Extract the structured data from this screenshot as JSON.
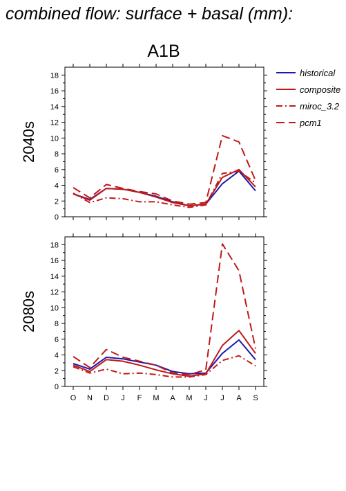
{
  "title": "combined flow: surface + basal (mm):",
  "scenario": "A1B",
  "legend": [
    {
      "label": "historical",
      "color": "#1a1ab0",
      "dash": "solid"
    },
    {
      "label": "composite",
      "color": "#c01818",
      "dash": "solid"
    },
    {
      "label": "miroc_3.2",
      "color": "#c01818",
      "dash": "dashdot"
    },
    {
      "label": "pcm1",
      "color": "#c01818",
      "dash": "dashed"
    }
  ],
  "chart_data": [
    {
      "type": "line",
      "period": "2040s",
      "categories": [
        "O",
        "N",
        "D",
        "J",
        "F",
        "M",
        "A",
        "M",
        "J",
        "J",
        "A",
        "S"
      ],
      "ylim": [
        0,
        19
      ],
      "yticks": [
        0,
        2,
        4,
        6,
        8,
        10,
        12,
        14,
        16,
        18
      ],
      "show_x_tick_labels": false,
      "series": [
        {
          "name": "historical",
          "values": [
            2.9,
            2.2,
            3.6,
            3.5,
            3.1,
            2.6,
            1.9,
            1.4,
            1.6,
            4.2,
            5.8,
            3.3
          ]
        },
        {
          "name": "composite",
          "values": [
            2.9,
            2.1,
            3.6,
            3.5,
            3.1,
            2.5,
            1.8,
            1.4,
            1.6,
            5.0,
            6.0,
            3.8
          ]
        },
        {
          "name": "miroc_3.2",
          "values": [
            3.0,
            1.8,
            2.4,
            2.3,
            1.9,
            1.9,
            1.5,
            1.2,
            1.5,
            5.5,
            5.8,
            4.3
          ]
        },
        {
          "name": "pcm1",
          "values": [
            3.7,
            2.4,
            4.1,
            3.6,
            3.2,
            2.9,
            2.0,
            1.6,
            1.8,
            10.3,
            9.5,
            4.6
          ]
        }
      ]
    },
    {
      "type": "line",
      "period": "2080s",
      "categories": [
        "O",
        "N",
        "D",
        "J",
        "F",
        "M",
        "A",
        "M",
        "J",
        "J",
        "A",
        "S"
      ],
      "ylim": [
        0,
        19
      ],
      "yticks": [
        0,
        2,
        4,
        6,
        8,
        10,
        12,
        14,
        16,
        18
      ],
      "show_x_tick_labels": true,
      "series": [
        {
          "name": "historical",
          "values": [
            2.9,
            2.2,
            3.7,
            3.5,
            3.1,
            2.7,
            1.9,
            1.6,
            1.7,
            4.2,
            5.9,
            3.4
          ]
        },
        {
          "name": "composite",
          "values": [
            2.7,
            1.9,
            3.4,
            3.2,
            2.7,
            2.1,
            1.6,
            1.3,
            1.6,
            5.2,
            7.1,
            4.2
          ]
        },
        {
          "name": "miroc_3.2",
          "values": [
            2.5,
            1.7,
            2.2,
            1.6,
            1.7,
            1.5,
            1.2,
            1.2,
            1.5,
            3.3,
            3.9,
            2.6
          ]
        },
        {
          "name": "pcm1",
          "values": [
            3.8,
            2.4,
            4.7,
            3.7,
            3.2,
            2.7,
            1.7,
            1.5,
            2.1,
            18.1,
            14.7,
            4.8
          ]
        }
      ]
    }
  ]
}
